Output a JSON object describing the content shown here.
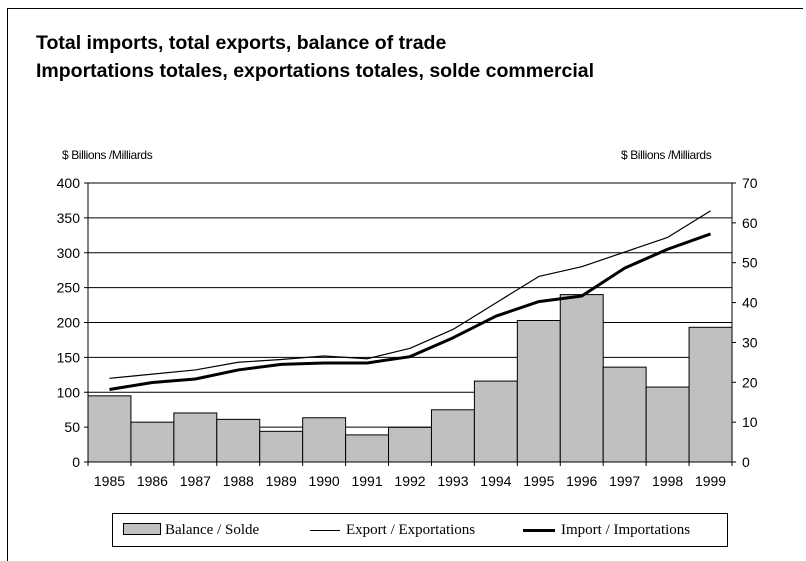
{
  "chart_data": {
    "type": "bar+line",
    "title": "Total imports, total exports, balance of trade",
    "subtitle": "Importations totales, exportations totales, solde commercial",
    "y_left_label": "$ Billions /Milliards",
    "y_right_label": "$ Billions /Milliards",
    "ylim_left": [
      0,
      400
    ],
    "ylim_right": [
      0,
      70
    ],
    "y_left_ticks": [
      "0",
      "50",
      "100",
      "150",
      "200",
      "250",
      "300",
      "350",
      "400"
    ],
    "y_right_ticks": [
      "0",
      "10",
      "20",
      "30",
      "40",
      "50",
      "60",
      "70"
    ],
    "categories": [
      "1985",
      "1986",
      "1987",
      "1988",
      "1989",
      "1990",
      "1991",
      "1992",
      "1993",
      "1994",
      "1995",
      "1996",
      "1997",
      "1998",
      "1999"
    ],
    "grid": "horizontal",
    "legend_position": "bottom",
    "series": [
      {
        "name": "Balance / Solde",
        "type": "bar",
        "axis": "right",
        "color": "#c0c0c0",
        "values": [
          16.6,
          10,
          12.3,
          10.7,
          7.7,
          11.1,
          6.8,
          8.7,
          13.1,
          20.3,
          35.5,
          42,
          23.8,
          18.8,
          33.8
        ]
      },
      {
        "name": "Export / Exportations",
        "type": "line",
        "axis": "left",
        "color": "#000000",
        "width": "thin",
        "values": [
          120,
          126,
          132,
          143,
          147,
          152,
          148,
          163,
          190,
          228,
          266,
          280,
          301,
          322,
          360
        ]
      },
      {
        "name": "Import / Importations",
        "type": "line",
        "axis": "left",
        "color": "#000000",
        "width": "thick",
        "values": [
          104,
          114,
          119,
          132,
          140,
          142,
          142,
          151,
          178,
          209,
          230,
          238,
          278,
          305,
          327
        ]
      }
    ]
  }
}
